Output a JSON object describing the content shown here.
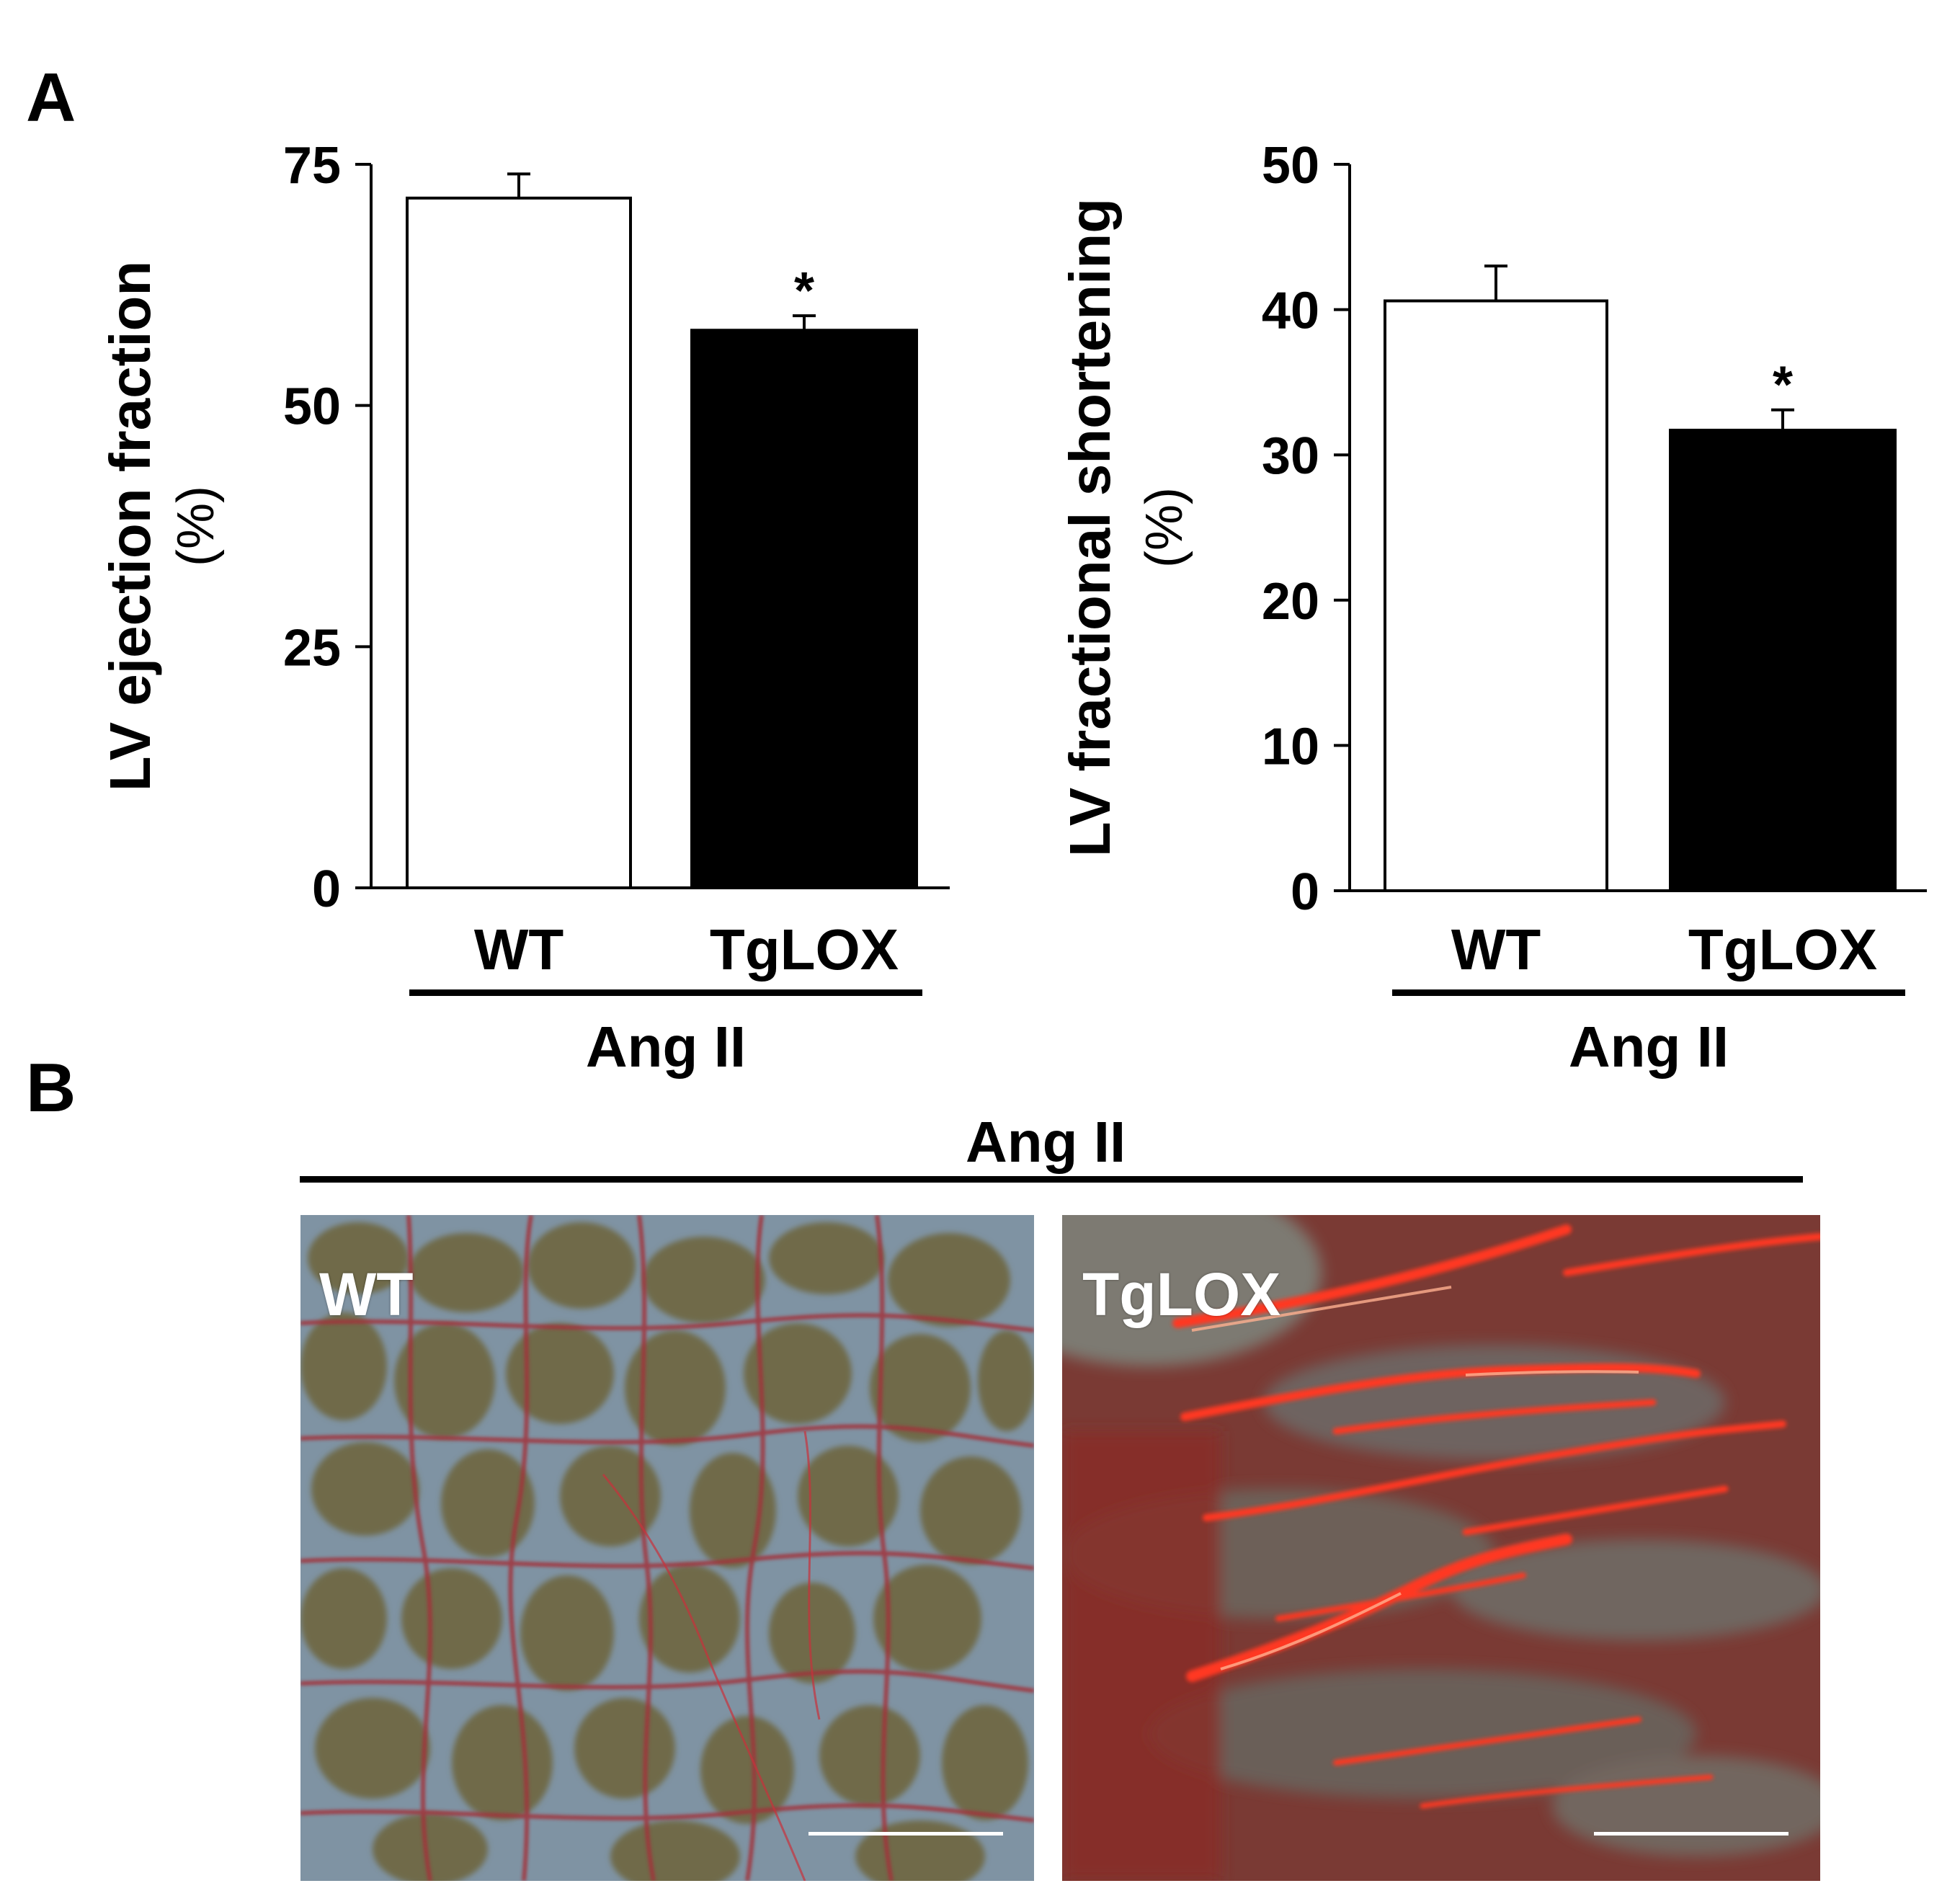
{
  "panels": {
    "a_label": "A",
    "b_label": "B"
  },
  "chart_data": [
    {
      "type": "bar",
      "categories": [
        "WT",
        "TgLOX"
      ],
      "values": [
        71.5,
        57.8
      ],
      "errors": [
        2.5,
        1.5
      ],
      "significance": [
        "",
        "*"
      ],
      "bar_colors": [
        "#ffffff",
        "#000000"
      ],
      "ylabel": "LV ejection fraction",
      "yunit": "(%)",
      "ylim": [
        0,
        75
      ],
      "yticks": [
        0,
        25,
        50,
        75
      ],
      "group_label": "Ang II"
    },
    {
      "type": "bar",
      "categories": [
        "WT",
        "TgLOX"
      ],
      "values": [
        40.6,
        31.7
      ],
      "errors": [
        2.4,
        1.4
      ],
      "significance": [
        "",
        "*"
      ],
      "bar_colors": [
        "#ffffff",
        "#000000"
      ],
      "ylabel": "LV fractional shortening",
      "yunit": "(%)",
      "ylim": [
        0,
        50
      ],
      "yticks": [
        0,
        10,
        20,
        30,
        40,
        50
      ],
      "group_label": "Ang II"
    }
  ],
  "histology": {
    "group_label": "Ang II",
    "images": [
      {
        "label": "WT",
        "description_colors": [
          "#6a6648",
          "#7a90a4",
          "#b0303c"
        ]
      },
      {
        "label": "TgLOX",
        "description_colors": [
          "#8a2a2a",
          "#ff3a20",
          "#7a7a70"
        ]
      }
    ]
  }
}
